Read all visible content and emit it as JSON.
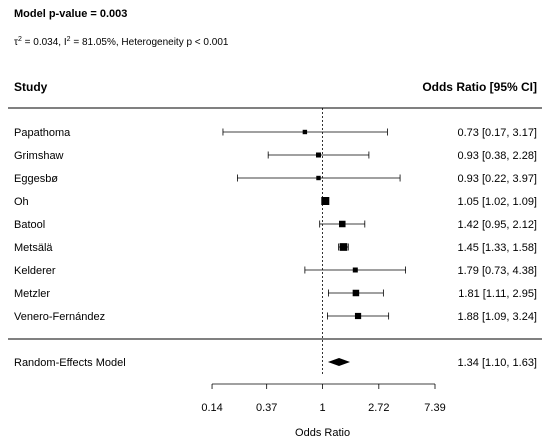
{
  "chart_data": {
    "type": "forest",
    "header_title": "Model p-value = 0.003",
    "heterogeneity": {
      "tau2": "0.034",
      "i2": "81.05%",
      "text": ", Heterogeneity p < 0.001"
    },
    "column_headers": {
      "study": "Study",
      "estimate": "Odds Ratio [95% CI]"
    },
    "studies": [
      {
        "name": "Papathoma",
        "or": 0.73,
        "lo": 0.17,
        "hi": 3.17,
        "weight": 0.4,
        "label": "0.73 [0.17, 3.17]"
      },
      {
        "name": "Grimshaw",
        "or": 0.93,
        "lo": 0.38,
        "hi": 2.28,
        "weight": 0.5,
        "label": "0.93 [0.38, 2.28]"
      },
      {
        "name": "Eggesbø",
        "or": 0.93,
        "lo": 0.22,
        "hi": 3.97,
        "weight": 0.4,
        "label": "0.93 [0.22, 3.97]"
      },
      {
        "name": "Oh",
        "or": 1.05,
        "lo": 1.02,
        "hi": 1.09,
        "weight": 1.0,
        "label": "1.05 [1.02, 1.09]"
      },
      {
        "name": "Batool",
        "or": 1.42,
        "lo": 0.95,
        "hi": 2.12,
        "weight": 0.75,
        "label": "1.42 [0.95, 2.12]"
      },
      {
        "name": "Metsälä",
        "or": 1.45,
        "lo": 1.33,
        "hi": 1.58,
        "weight": 0.95,
        "label": "1.45 [1.33, 1.58]"
      },
      {
        "name": "Kelderer",
        "or": 1.79,
        "lo": 0.73,
        "hi": 4.38,
        "weight": 0.5,
        "label": "1.79 [0.73, 4.38]"
      },
      {
        "name": "Metzler",
        "or": 1.81,
        "lo": 1.11,
        "hi": 2.95,
        "weight": 0.75,
        "label": "1.81 [1.11, 2.95]"
      },
      {
        "name": "Venero-Fernández",
        "or": 1.88,
        "lo": 1.09,
        "hi": 3.24,
        "weight": 0.7,
        "label": "1.88 [1.09, 3.24]"
      }
    ],
    "summary": {
      "name": "Random-Effects Model",
      "or": 1.34,
      "lo": 1.1,
      "hi": 1.63,
      "label": "1.34 [1.10, 1.63]"
    },
    "xscale": "log",
    "xlim": [
      0.135,
      7.39
    ],
    "xticks": [
      0.14,
      0.37,
      1,
      2.72,
      7.39
    ],
    "xtick_labels": [
      "0.14",
      "0.37",
      "1",
      "2.72",
      "7.39"
    ],
    "reference_line": 1,
    "xlabel": "Odds Ratio"
  }
}
